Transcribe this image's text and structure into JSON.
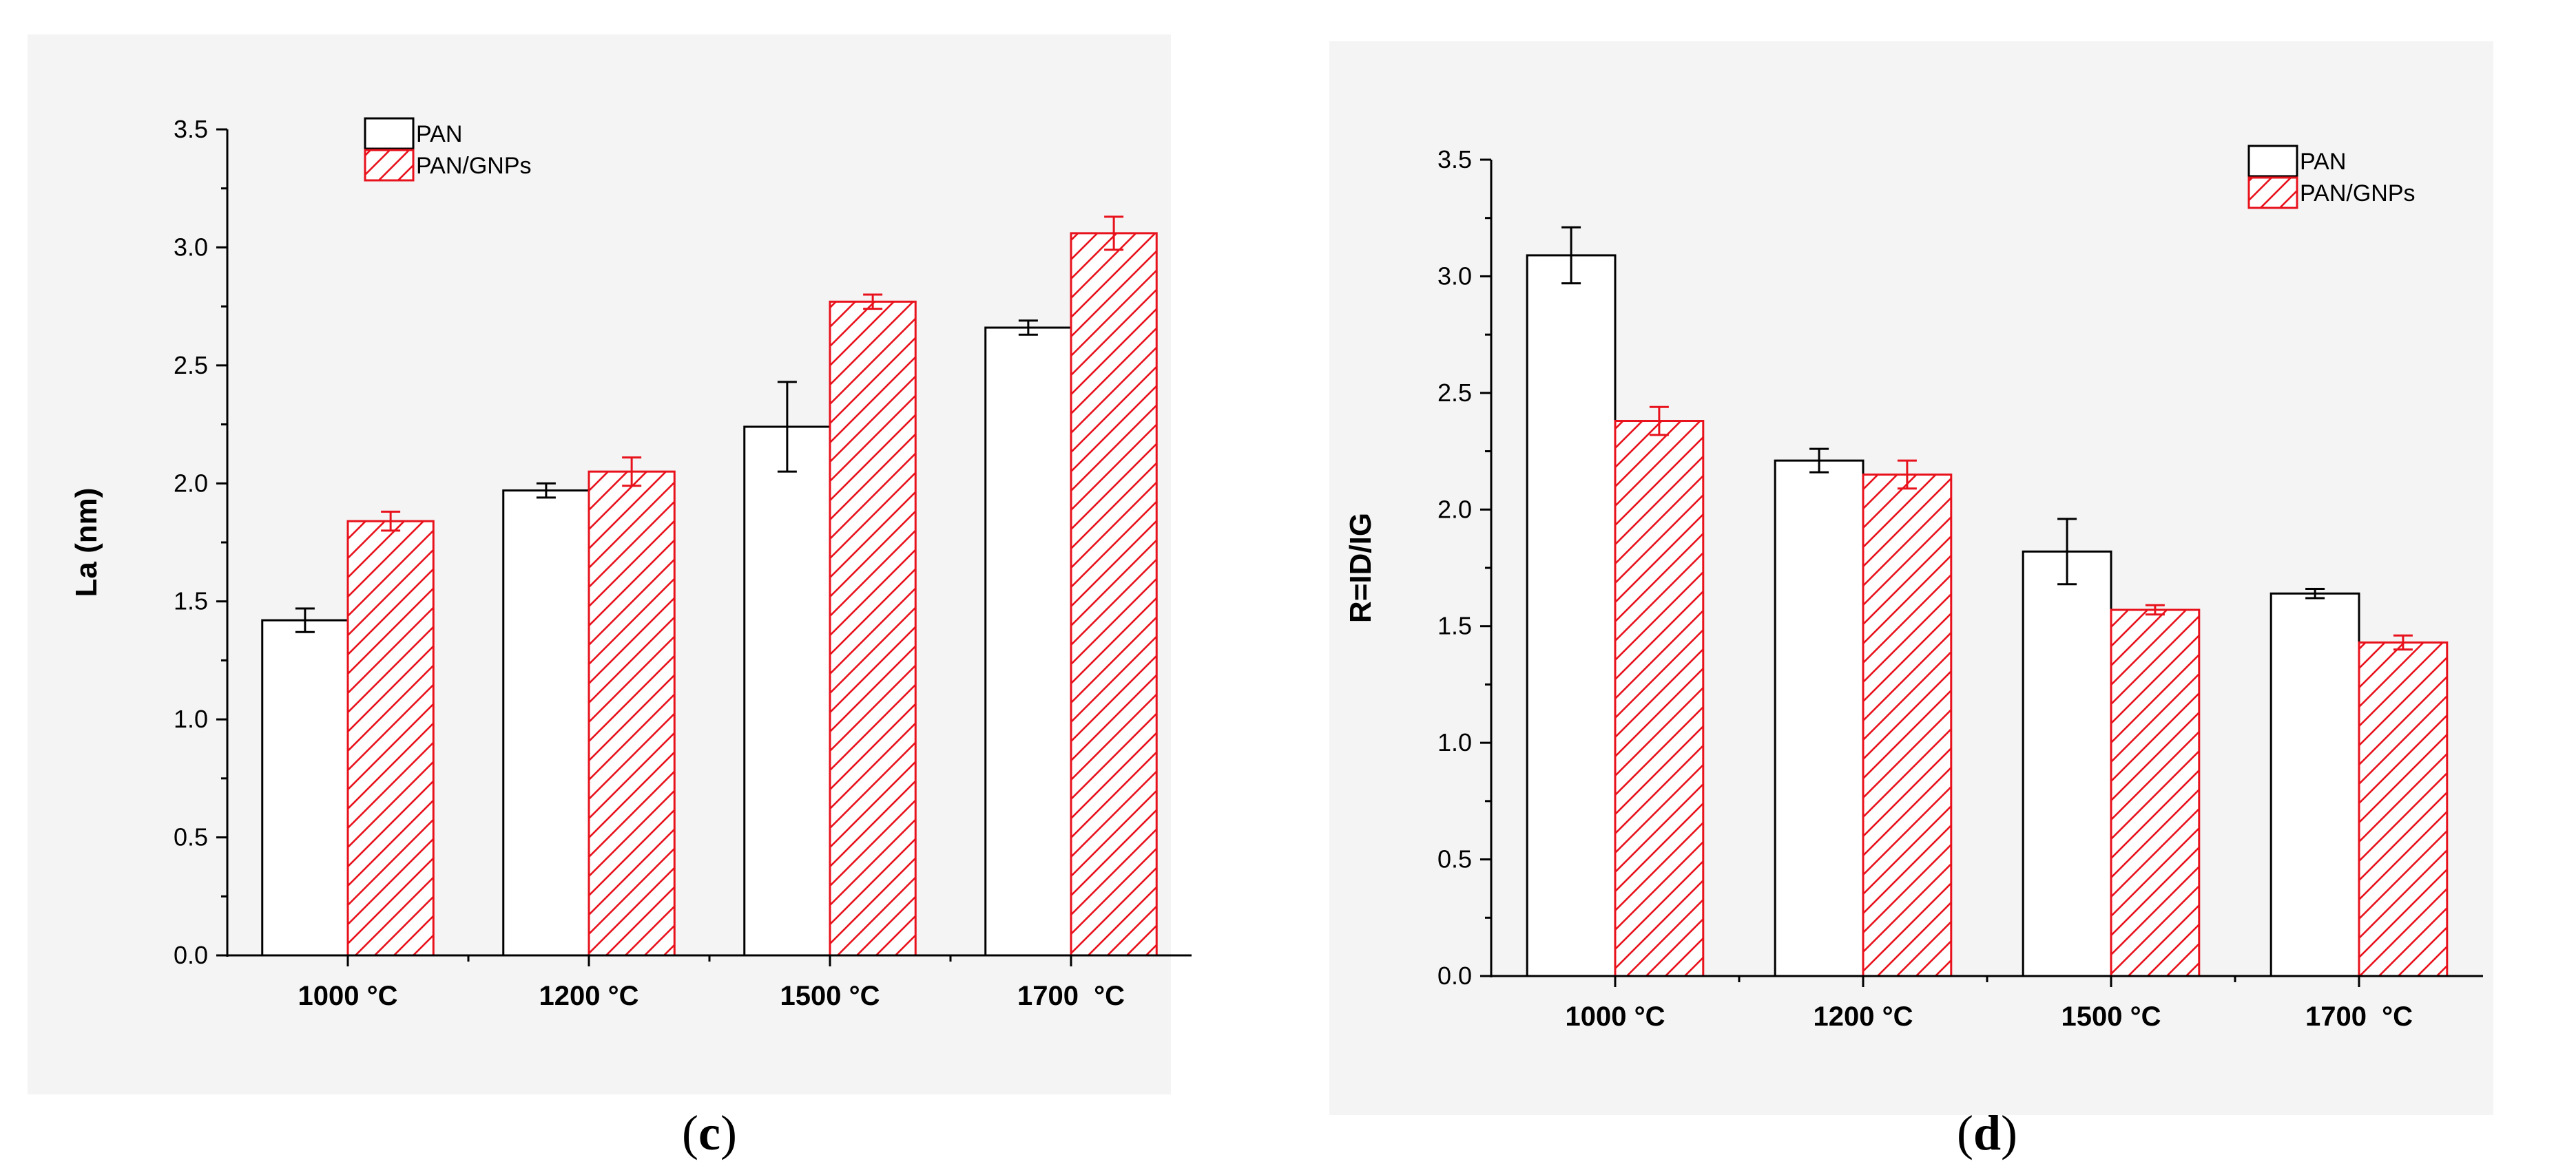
{
  "colors": {
    "pan_outline": "#000000",
    "gnp_stroke": "#e8121c",
    "axis": "#000000",
    "panel_bg": "#f4f4f4"
  },
  "chart_data": [
    {
      "id": "c",
      "type": "bar",
      "panel_label": "(c)",
      "panel_letter": "c",
      "title": "",
      "xlabel": "",
      "ylabel": "La (nm)",
      "ylim": [
        0,
        3.5
      ],
      "major_ticks": [
        "0.0",
        "0.5",
        "1.0",
        "1.5",
        "2.0",
        "2.5",
        "3.0",
        "3.5"
      ],
      "categories": [
        "1000 °C",
        "1200 °C",
        "1500 °C",
        "1700  °C"
      ],
      "legend_position": "top-center",
      "series": [
        {
          "name": "PAN",
          "pattern": "open",
          "values": [
            1.42,
            1.97,
            2.24,
            2.66
          ],
          "errors": [
            0.05,
            0.03,
            0.19,
            0.03
          ]
        },
        {
          "name": "PAN/GNPs",
          "pattern": "hatched",
          "values": [
            1.84,
            2.05,
            2.77,
            3.06
          ],
          "errors": [
            0.04,
            0.06,
            0.03,
            0.07
          ]
        }
      ]
    },
    {
      "id": "d",
      "type": "bar",
      "panel_label": "(d)",
      "panel_letter": "d",
      "title": "",
      "xlabel": "",
      "ylabel": "R=ID/IG",
      "ylim": [
        0,
        3.5
      ],
      "major_ticks": [
        "0.0",
        "0.5",
        "1.0",
        "1.5",
        "2.0",
        "2.5",
        "3.0",
        "3.5"
      ],
      "categories": [
        "1000 °C",
        "1200 °C",
        "1500 °C",
        "1700  °C"
      ],
      "legend_position": "top-right",
      "series": [
        {
          "name": "PAN",
          "pattern": "open",
          "values": [
            3.09,
            2.21,
            1.82,
            1.64
          ],
          "errors": [
            0.12,
            0.05,
            0.14,
            0.02
          ]
        },
        {
          "name": "PAN/GNPs",
          "pattern": "hatched",
          "values": [
            2.38,
            2.15,
            1.57,
            1.43
          ],
          "errors": [
            0.06,
            0.06,
            0.02,
            0.03
          ]
        }
      ]
    }
  ]
}
